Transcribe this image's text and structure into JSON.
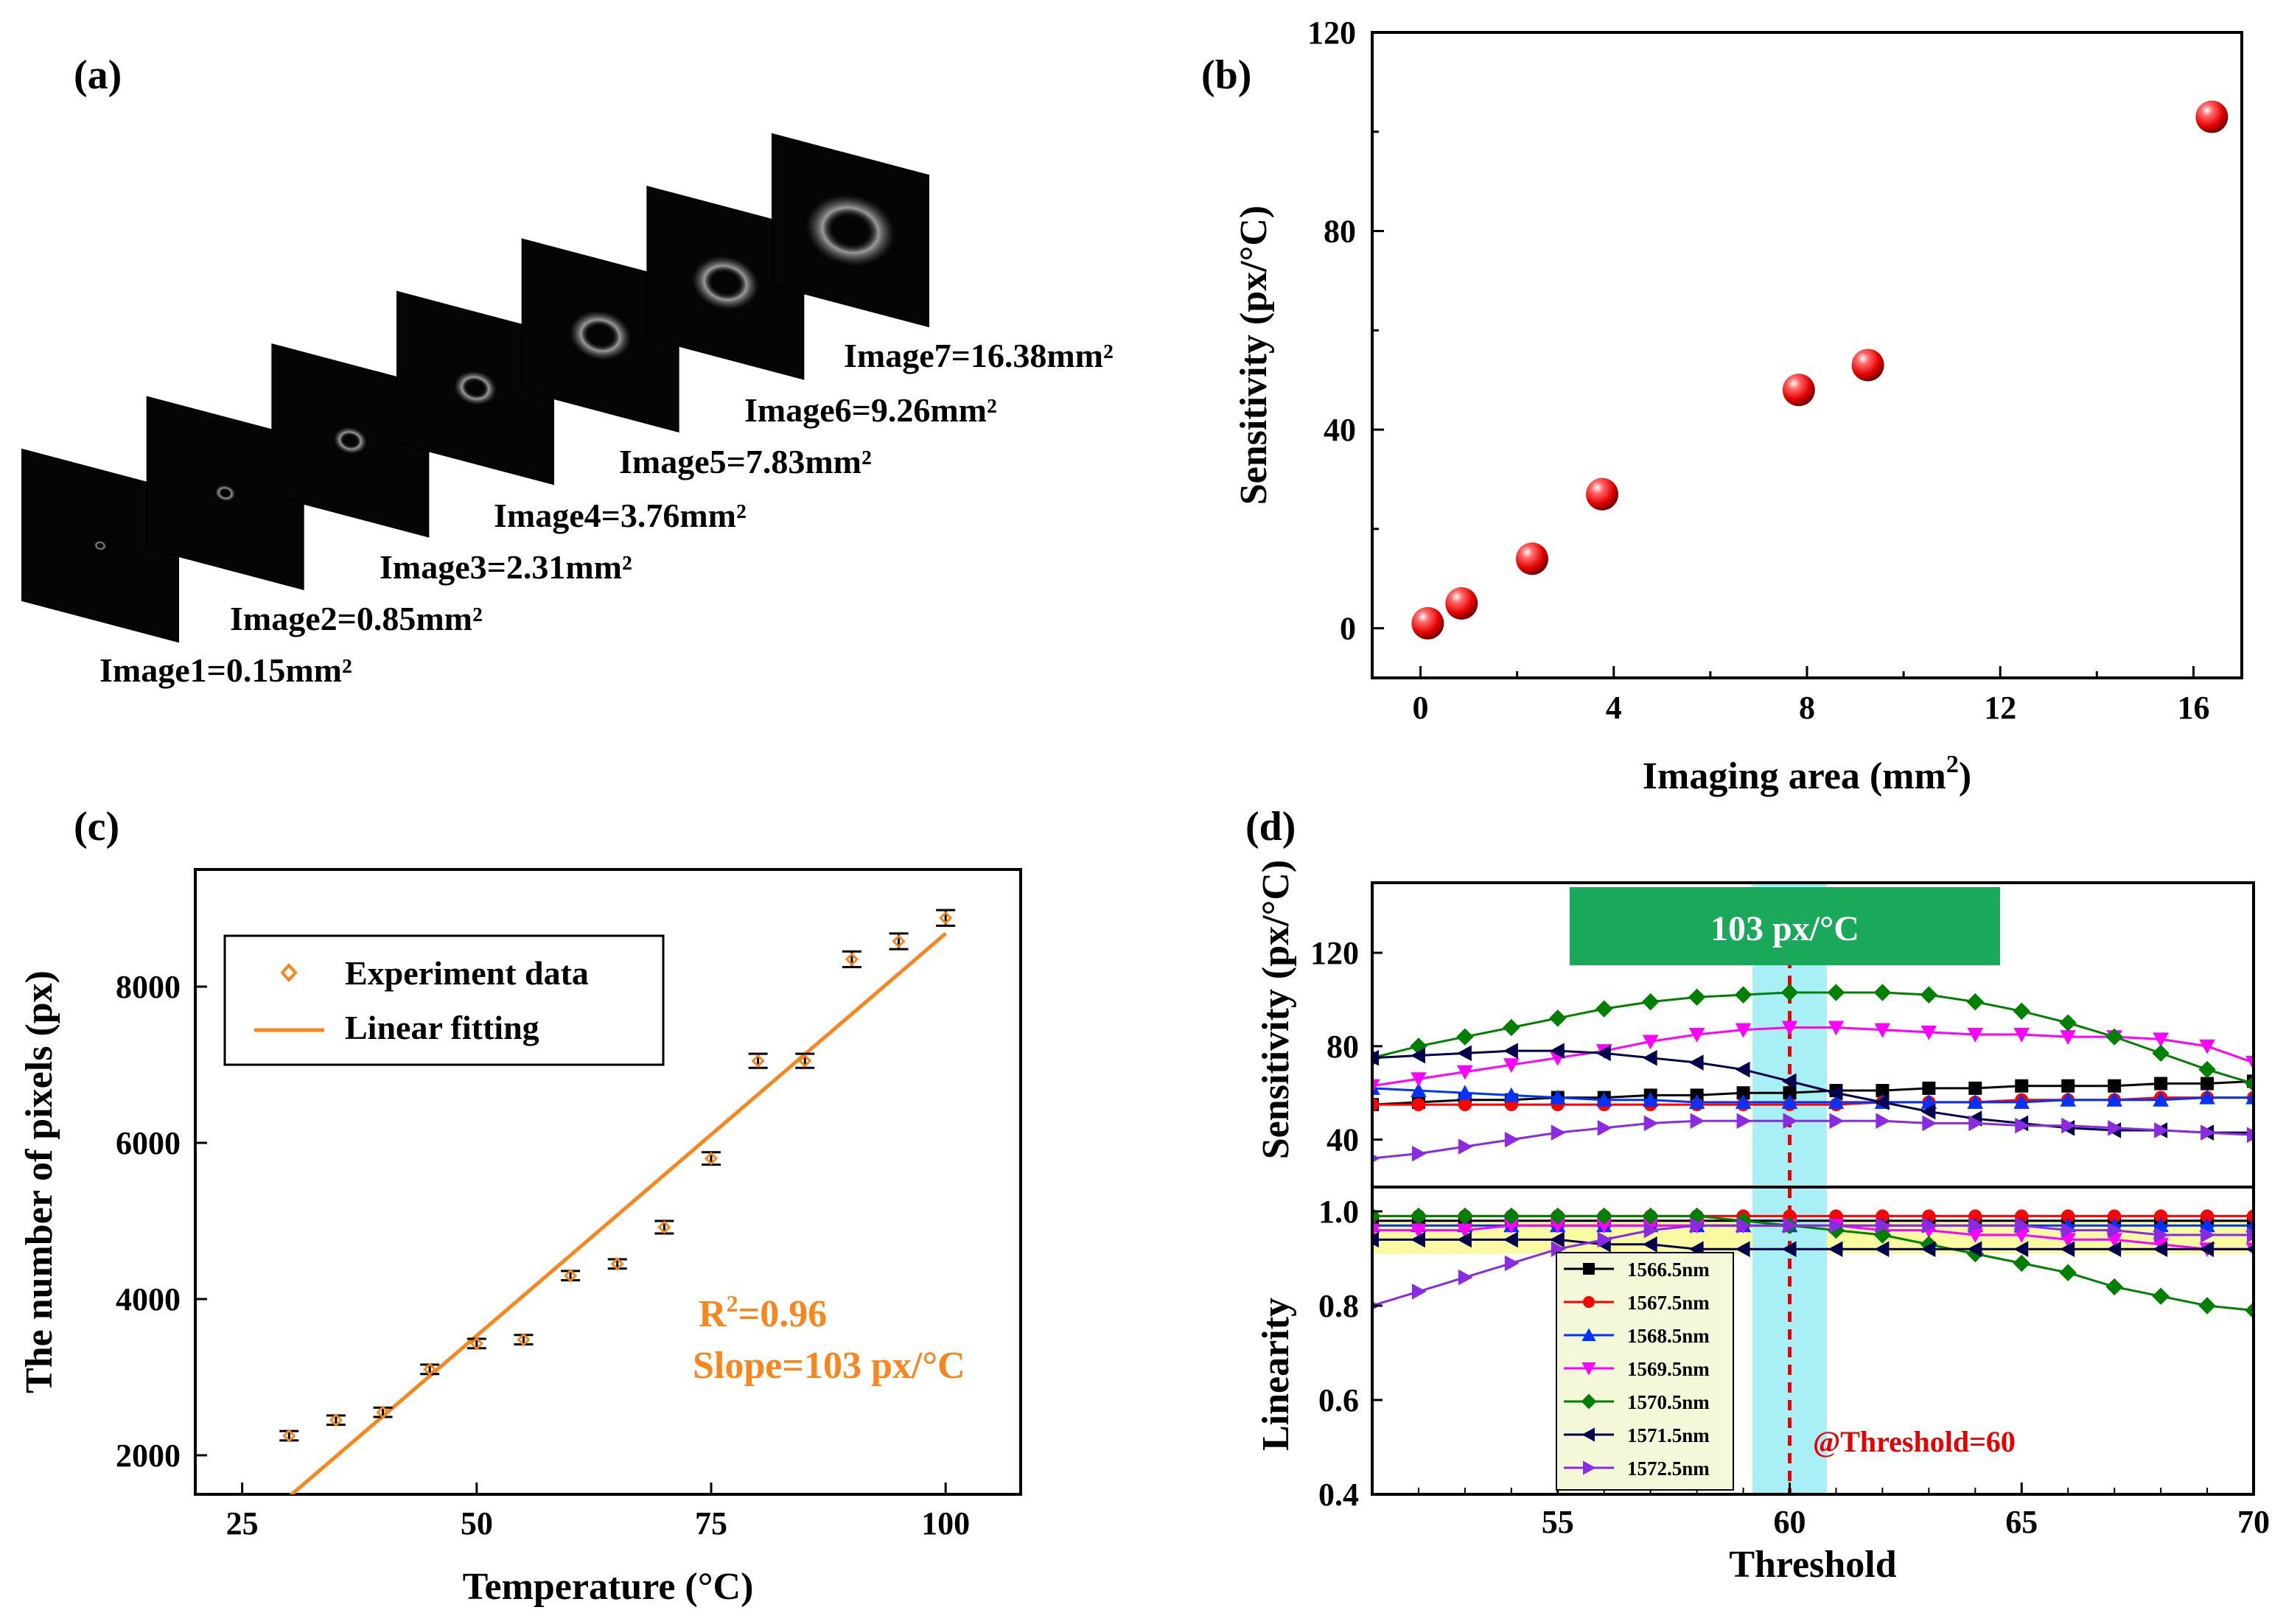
{
  "panels": {
    "a": {
      "label": "(a)"
    },
    "b": {
      "label": "(b)"
    },
    "c": {
      "label": "(c)"
    },
    "d": {
      "label": "(d)"
    }
  },
  "panel_a": {
    "images": [
      {
        "label": "Image1=0.15mm²",
        "area": 0.15
      },
      {
        "label": "Image2=0.85mm²",
        "area": 0.85
      },
      {
        "label": "Image3=2.31mm²",
        "area": 2.31
      },
      {
        "label": "Image4=3.76mm²",
        "area": 3.76
      },
      {
        "label": "Image5=7.83mm²",
        "area": 7.83
      },
      {
        "label": "Image6=9.26mm²",
        "area": 9.26
      },
      {
        "label": "Image7=16.38mm²",
        "area": 16.38
      }
    ]
  },
  "chart_data": [
    {
      "id": "b",
      "type": "scatter",
      "xlabel": "Imaging area (mm",
      "xlabel_sup": "2",
      "xlabel_end": ")",
      "ylabel": "Sensitivity (px/°C)",
      "xlim": [
        -1,
        17
      ],
      "ylim": [
        -10,
        120
      ],
      "xticks": [
        0,
        4,
        8,
        12,
        16
      ],
      "yticks": [
        0,
        40,
        80,
        120
      ],
      "marker_color": "#e60000",
      "x": [
        0.15,
        0.85,
        2.31,
        3.76,
        7.83,
        9.26,
        16.38
      ],
      "y": [
        1,
        5,
        14,
        27,
        48,
        53,
        103
      ]
    },
    {
      "id": "c",
      "type": "scatter",
      "xlabel": "Temperature (°C)",
      "ylabel": "The number of pixels (px)",
      "xlim": [
        20,
        108
      ],
      "ylim": [
        1500,
        9500
      ],
      "xticks": [
        25,
        50,
        75,
        100
      ],
      "yticks": [
        2000,
        4000,
        6000,
        8000
      ],
      "legend": [
        "Experiment data",
        "Linear fitting"
      ],
      "legend_position": "top-left",
      "color": "#f7861d",
      "x": [
        30,
        35,
        40,
        45,
        50,
        55,
        60,
        65,
        70,
        75,
        80,
        85,
        90,
        95,
        100
      ],
      "y": [
        2250,
        2450,
        2550,
        3100,
        3430,
        3480,
        4300,
        4450,
        4920,
        5800,
        7050,
        7050,
        8350,
        8580,
        8880
      ],
      "error": [
        60,
        60,
        60,
        60,
        60,
        60,
        60,
        60,
        80,
        80,
        90,
        90,
        100,
        100,
        100
      ],
      "fit": {
        "slope": 103,
        "intercept": -1620
      },
      "annotation_r2_base": "R",
      "annotation_r2_sup": "2",
      "annotation_r2_rest": "=0.96",
      "annotation_slope": "Slope=103 px/°C"
    },
    {
      "id": "d",
      "type": "line",
      "xlabel": "Threshold",
      "ylabel_top": "Sensitivity (px/°C)",
      "ylabel_bottom": "Linearity",
      "xlim": [
        51,
        70
      ],
      "xticks": [
        55,
        60,
        65,
        70
      ],
      "top_ylim": [
        20,
        150
      ],
      "top_yticks": [
        40,
        80,
        120
      ],
      "bottom_ylim": [
        0.4,
        1.05
      ],
      "bottom_yticks": [
        0.4,
        0.6,
        0.8,
        1.0
      ],
      "banner": "103 px/°C",
      "banner_color": "#1aa85a",
      "highlight_color": "#a8f0f5",
      "band_color": "#fafaa0",
      "threshold_annotation": "@Threshold=60",
      "threshold_color": "#e60000",
      "x": [
        51,
        52,
        53,
        54,
        55,
        56,
        57,
        58,
        59,
        60,
        61,
        62,
        63,
        64,
        65,
        66,
        67,
        68,
        69,
        70
      ],
      "series": [
        {
          "name": "1566.5nm",
          "color": "#000000",
          "marker": "square",
          "sensitivity": [
            55,
            56,
            57,
            57,
            58,
            58,
            59,
            59,
            60,
            60,
            61,
            61,
            62,
            62,
            63,
            63,
            63,
            64,
            64,
            65
          ],
          "linearity": [
            0.98,
            0.98,
            0.98,
            0.98,
            0.98,
            0.98,
            0.98,
            0.98,
            0.98,
            0.98,
            0.98,
            0.98,
            0.98,
            0.98,
            0.98,
            0.98,
            0.98,
            0.98,
            0.98,
            0.98
          ]
        },
        {
          "name": "1567.5nm",
          "color": "#ff0000",
          "marker": "circle",
          "sensitivity": [
            55,
            55,
            55,
            55,
            55,
            55,
            55,
            55,
            55,
            55,
            55,
            56,
            56,
            56,
            57,
            57,
            57,
            58,
            58,
            58
          ],
          "linearity": [
            0.99,
            0.99,
            0.99,
            0.99,
            0.99,
            0.99,
            0.99,
            0.99,
            0.99,
            0.99,
            0.99,
            0.99,
            0.99,
            0.99,
            0.99,
            0.99,
            0.99,
            0.99,
            0.99,
            0.99
          ]
        },
        {
          "name": "1568.5nm",
          "color": "#0033ff",
          "marker": "triangle-up",
          "sensitivity": [
            62,
            61,
            60,
            59,
            58,
            57,
            57,
            56,
            56,
            56,
            56,
            56,
            56,
            56,
            56,
            57,
            57,
            57,
            58,
            58
          ],
          "linearity": [
            0.97,
            0.97,
            0.97,
            0.97,
            0.97,
            0.97,
            0.97,
            0.97,
            0.97,
            0.97,
            0.97,
            0.97,
            0.97,
            0.97,
            0.97,
            0.97,
            0.97,
            0.97,
            0.97,
            0.97
          ]
        },
        {
          "name": "1569.5nm",
          "color": "#ff00ff",
          "marker": "triangle-down",
          "sensitivity": [
            63,
            66,
            69,
            72,
            75,
            78,
            82,
            85,
            87,
            88,
            88,
            87,
            86,
            85,
            85,
            84,
            84,
            83,
            80,
            73
          ],
          "linearity": [
            0.96,
            0.96,
            0.96,
            0.97,
            0.97,
            0.97,
            0.97,
            0.97,
            0.97,
            0.97,
            0.97,
            0.96,
            0.96,
            0.95,
            0.95,
            0.94,
            0.94,
            0.93,
            0.92,
            0.92
          ]
        },
        {
          "name": "1570.5nm",
          "color": "#008000",
          "marker": "diamond",
          "sensitivity": [
            75,
            80,
            84,
            88,
            92,
            96,
            99,
            101,
            102,
            103,
            103,
            103,
            102,
            99,
            95,
            90,
            84,
            77,
            70,
            64
          ],
          "linearity": [
            0.99,
            0.99,
            0.99,
            0.99,
            0.99,
            0.99,
            0.99,
            0.99,
            0.98,
            0.97,
            0.96,
            0.95,
            0.93,
            0.91,
            0.89,
            0.87,
            0.84,
            0.82,
            0.8,
            0.79
          ]
        },
        {
          "name": "1571.5nm",
          "color": "#00004d",
          "marker": "triangle-left",
          "sensitivity": [
            75,
            76,
            77,
            78,
            78,
            77,
            75,
            73,
            70,
            65,
            60,
            56,
            52,
            49,
            47,
            45,
            44,
            44,
            43,
            43
          ],
          "linearity": [
            0.94,
            0.94,
            0.94,
            0.94,
            0.94,
            0.93,
            0.93,
            0.92,
            0.92,
            0.92,
            0.92,
            0.92,
            0.92,
            0.92,
            0.92,
            0.92,
            0.92,
            0.92,
            0.92,
            0.92
          ]
        },
        {
          "name": "1572.5nm",
          "color": "#8a2be2",
          "marker": "triangle-right",
          "sensitivity": [
            32,
            34,
            37,
            40,
            43,
            45,
            47,
            48,
            48,
            48,
            48,
            48,
            47,
            47,
            46,
            46,
            45,
            44,
            43,
            42
          ],
          "linearity": [
            0.8,
            0.83,
            0.86,
            0.89,
            0.92,
            0.94,
            0.96,
            0.97,
            0.97,
            0.97,
            0.97,
            0.97,
            0.97,
            0.97,
            0.97,
            0.96,
            0.96,
            0.95,
            0.95,
            0.95
          ]
        }
      ]
    }
  ]
}
